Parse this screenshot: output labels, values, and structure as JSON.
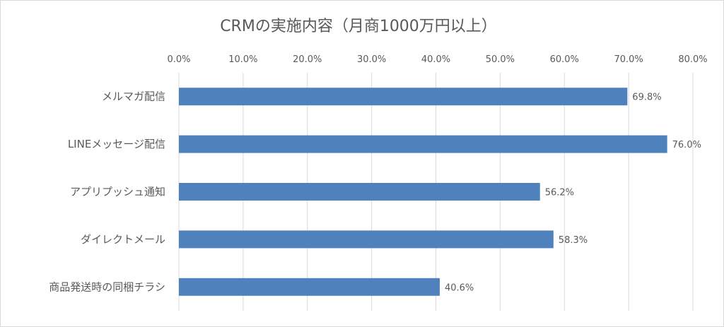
{
  "chart_data": {
    "type": "bar",
    "orientation": "horizontal",
    "title": "CRMの実施内容（月商1000万円以上）",
    "categories": [
      "メルマガ配信",
      "LINEメッセージ配信",
      "アプリプッシュ通知",
      "ダイレクトメール",
      "商品発送時の同梱チラシ"
    ],
    "values": [
      69.8,
      76.0,
      56.2,
      58.3,
      40.6
    ],
    "value_labels": [
      "69.8%",
      "76.0%",
      "56.2%",
      "58.3%",
      "40.6%"
    ],
    "xlim": [
      0,
      80
    ],
    "x_ticks": [
      "0.0%",
      "10.0%",
      "20.0%",
      "30.0%",
      "40.0%",
      "50.0%",
      "60.0%",
      "70.0%",
      "80.0%"
    ],
    "x_axis_position": "top",
    "grid": true,
    "bar_color": "#4f81bd"
  }
}
